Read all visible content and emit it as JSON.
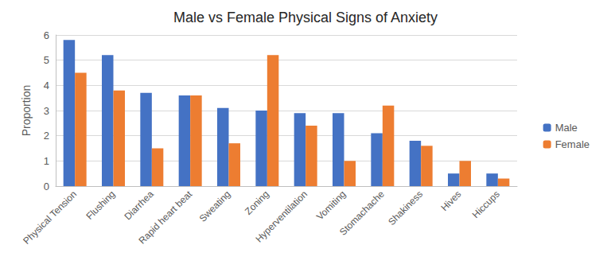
{
  "chart_data": {
    "type": "bar",
    "title": "Male vs Female Physical Signs of Anxiety",
    "y_label": "Proportion",
    "categories": [
      "Physical Tension",
      "Flushing",
      "Diarrhea",
      "Rapid heart beat",
      "Sweating",
      "Zoning",
      "Hyperventilation",
      "Vomiting",
      "Stomachache",
      "Shakiness",
      "Hives",
      "Hiccups"
    ],
    "series": [
      {
        "name": "Male",
        "color": "#4472c4",
        "values": [
          5.8,
          5.2,
          3.7,
          3.6,
          3.1,
          3.0,
          2.9,
          2.9,
          2.1,
          1.8,
          0.5,
          0.5
        ]
      },
      {
        "name": "Female",
        "color": "#ed7d31",
        "values": [
          4.5,
          3.8,
          1.5,
          3.6,
          1.7,
          5.2,
          2.4,
          1.0,
          3.2,
          1.6,
          1.0,
          0.3
        ]
      }
    ],
    "ylim": [
      0,
      6
    ],
    "yticks": [
      0,
      1,
      2,
      3,
      4,
      5,
      6
    ],
    "grid": true,
    "legend": "right"
  }
}
